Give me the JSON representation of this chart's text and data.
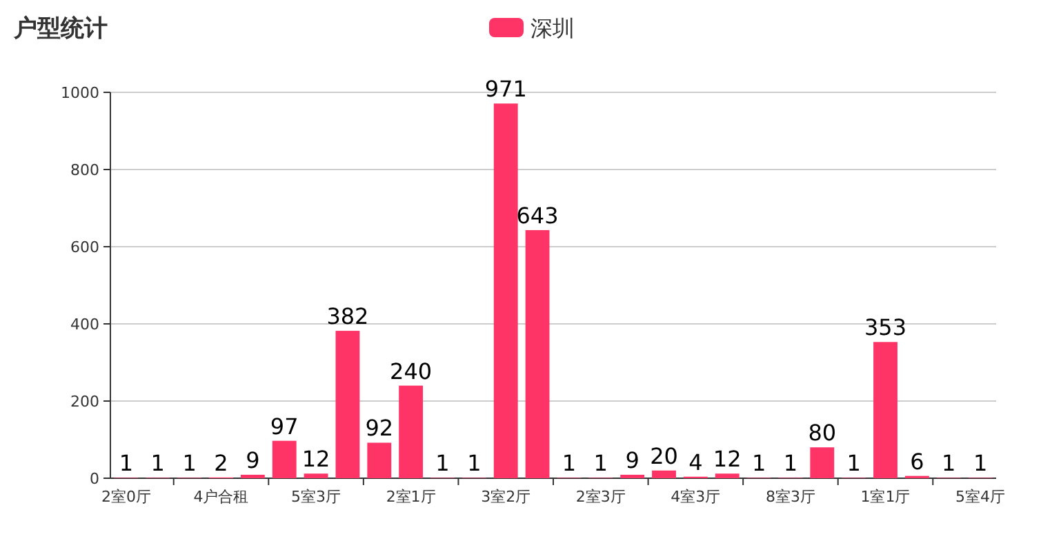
{
  "chart_data": {
    "type": "bar",
    "title": "户型统计",
    "categories": [
      "2室0厅",
      null,
      null,
      "4户合租",
      null,
      null,
      "5室3厅",
      null,
      null,
      "2室1厅",
      null,
      null,
      "3室2厅",
      null,
      null,
      "2室3厅",
      null,
      null,
      "4室3厅",
      null,
      null,
      "8室3厅",
      null,
      null,
      "1室1厅",
      null,
      null,
      "5室4厅"
    ],
    "series": [
      {
        "name": "深圳",
        "color": "#fe3366",
        "values": [
          1,
          1,
          1,
          2,
          9,
          97,
          12,
          382,
          92,
          240,
          1,
          1,
          971,
          643,
          1,
          1,
          9,
          20,
          4,
          12,
          1,
          1,
          80,
          1,
          353,
          6,
          1,
          1
        ]
      }
    ],
    "ylim": [
      0,
      1000
    ],
    "yticks": [
      0,
      200,
      400,
      600,
      800,
      1000
    ],
    "grid": "y",
    "legend": "top",
    "data_labels": true
  }
}
